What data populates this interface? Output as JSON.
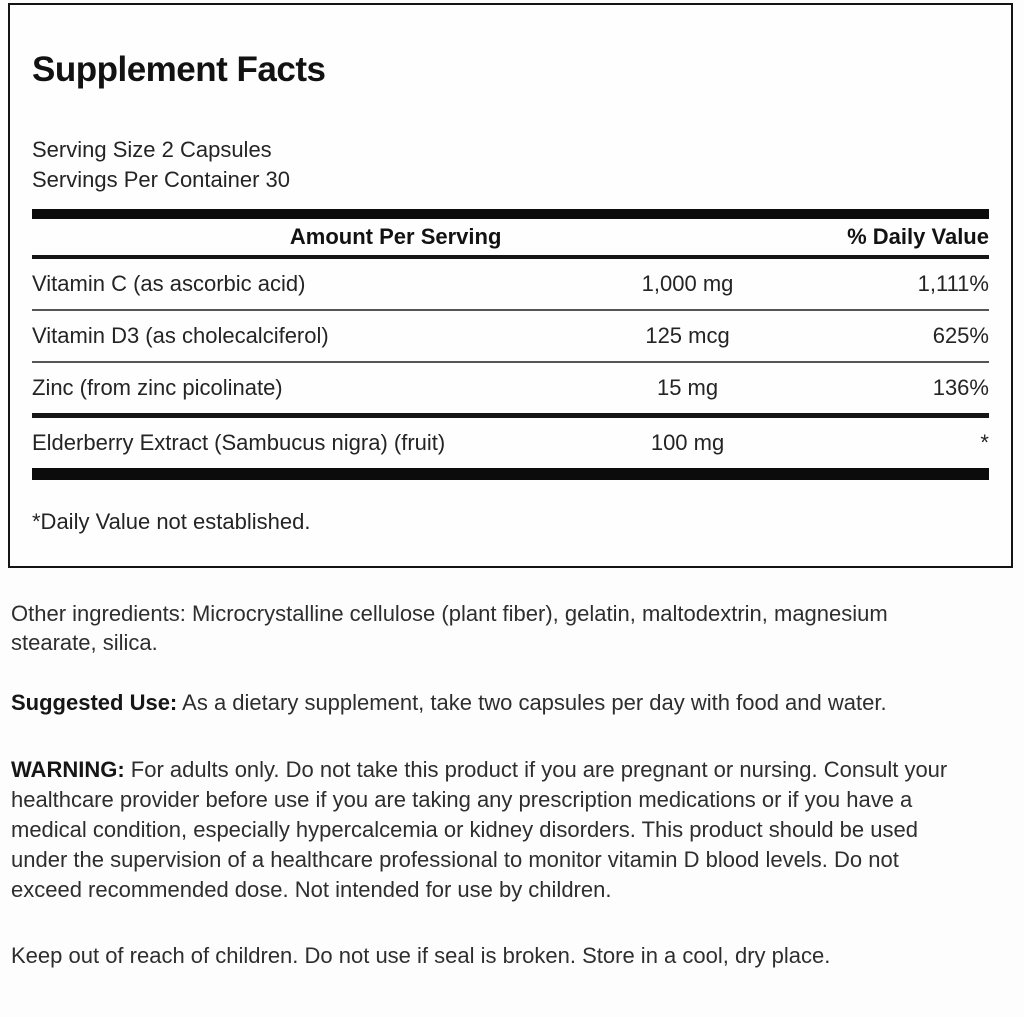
{
  "label": {
    "panel": {
      "title": "Supplement Facts",
      "serving_size": "Serving Size 2 Capsules",
      "servings_per_container": "Servings Per Container 30",
      "columns": {
        "amount": "Amount Per Serving",
        "daily_value": "% Daily Value"
      },
      "rows": [
        {
          "name": "Vitamin C (as ascorbic acid)",
          "amount": "1,000 mg",
          "dv": "1,111%"
        },
        {
          "name": "Vitamin D3 (as cholecalciferol)",
          "amount": "125 mcg",
          "dv": "625%"
        },
        {
          "name": "Zinc (from zinc picolinate)",
          "amount": "15 mg",
          "dv": "136%"
        },
        {
          "name": "Elderberry Extract (Sambucus nigra) (fruit)",
          "amount": "100 mg",
          "dv": "*"
        }
      ],
      "footnote": "*Daily Value not established."
    },
    "other_ingredients": {
      "text": "Other ingredients: Microcrystalline cellulose (plant fiber), gelatin, maltodextrin, magnesium stearate, silica."
    },
    "suggested_use": {
      "heading": "Suggested Use:",
      "text": " As a dietary supplement, take two capsules per day with food and water."
    },
    "warning": {
      "heading": "WARNING:",
      "text": " For adults only. Do not take this product if you are pregnant or nursing. Consult your healthcare provider before use if you are taking any prescription medications or if you have a medical condition, especially hypercalcemia or kidney disorders. This product should be used under the supervision of a healthcare professional to monitor vitamin D blood levels. Do not exceed recommended dose. Not intended for use by children."
    },
    "storage": {
      "text": "Keep out of reach of children. Do not use if seal is broken. Store in a cool, dry place."
    },
    "colors": {
      "text": "#2b2b2b",
      "border": "#141414",
      "background": "#fdfdfd"
    }
  }
}
